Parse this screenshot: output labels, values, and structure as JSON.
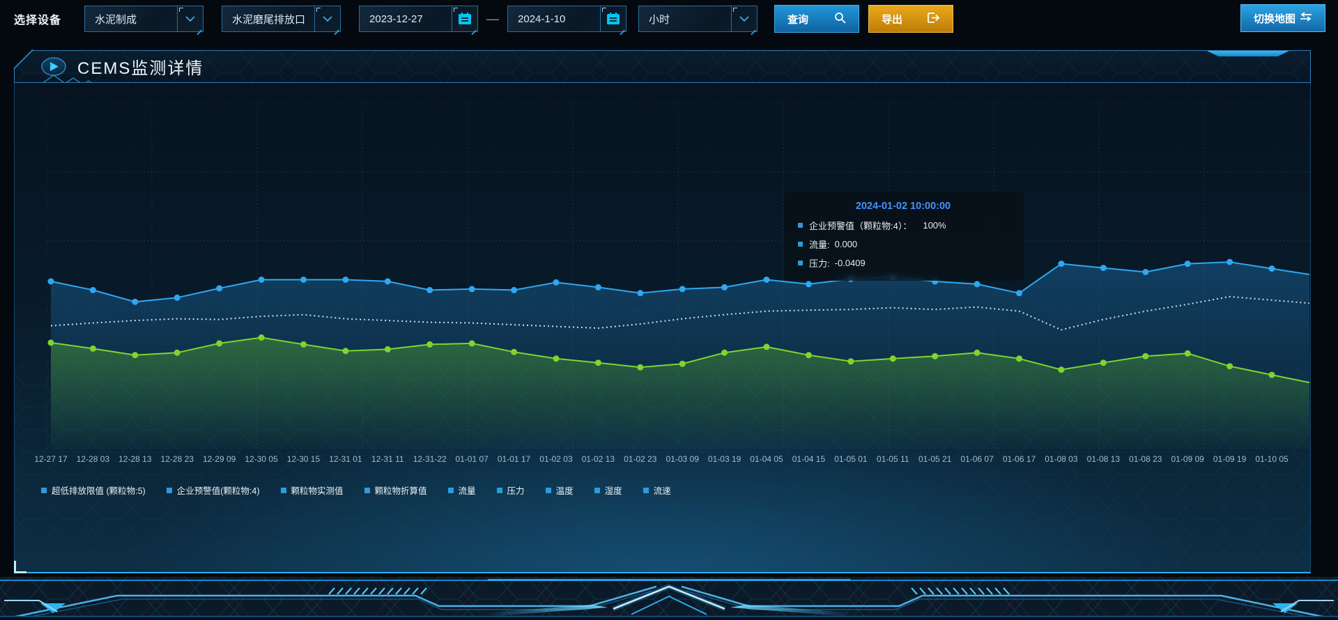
{
  "toolbar": {
    "device_label": "选择设备",
    "selects": [
      {
        "value": "水泥制成"
      },
      {
        "value": "水泥磨尾排放口"
      }
    ],
    "date_from": "2023-12-27",
    "date_separator": "—",
    "date_to": "2024-1-10",
    "interval": {
      "value": "小时"
    },
    "query_label": "查询",
    "export_label": "导出",
    "switch_map_label": "切换地图"
  },
  "header": {
    "title": "CEMS监测详情"
  },
  "tooltip": {
    "timestamp": "2024-01-02 10:00:00",
    "marker_color": "#2e9bd8",
    "rows": [
      {
        "label": "企业预警值（颗粒物:4）：",
        "value": "100%"
      },
      {
        "label": "流量:",
        "value": "0.000"
      },
      {
        "label": "压力:",
        "value": "-0.0409"
      }
    ]
  },
  "legend": {
    "marker_color": "#2e9bd8",
    "items": [
      "超低排放限值 (颗粒物:5)",
      "企业预警值(颗粒物:4)",
      "颗粒物实测值",
      "颗粒物折算值",
      "流量",
      "压力",
      "温度",
      "湿度",
      "流速"
    ]
  },
  "chart_data": {
    "type": "line",
    "title": "CEMS监测详情",
    "y_axis_visible": false,
    "y_unit": "pct_from_top",
    "grid": "dotted",
    "cursor_time": "2024-01-02 10:00:00",
    "x_categories": [
      "12-27 17",
      "12-28 03",
      "12-28 13",
      "12-28 23",
      "12-29 09",
      "12-30 05",
      "12-30 15",
      "12-31 01",
      "12-31 11",
      "12-31-22",
      "01-01 07",
      "01-01 17",
      "01-02 03",
      "01-02 13",
      "01-02 23",
      "01-03 09",
      "01-03 19",
      "01-04 05",
      "01-04 15",
      "01-05 01",
      "01-05 11",
      "01-05 21",
      "01-06 07",
      "01-06 17",
      "01-08 03",
      "01-08 13",
      "01-08 23",
      "01-09 09",
      "01-09 19",
      "01-10 05"
    ],
    "series": [
      {
        "name": "企业预警值（颗粒物:4）",
        "color": "#2fa7f2",
        "style": "solid",
        "markers": true,
        "area": true,
        "area_color": "#1f78b9",
        "value_at_cursor": "100%",
        "y_pct_from_top": [
          51.7,
          54.2,
          57.6,
          56.4,
          53.7,
          51.2,
          51.2,
          51.2,
          51.7,
          54.2,
          53.9,
          54.2,
          52.0,
          53.4,
          55.1,
          53.9,
          53.4,
          51.2,
          52.5,
          51.0,
          50.5,
          51.7,
          52.5,
          55.1,
          46.6,
          47.8,
          49.0,
          46.6,
          46.1,
          48.0
        ]
      },
      {
        "name": "流量",
        "color": "#e8f4fa",
        "style": "dotted",
        "markers": false,
        "area": false,
        "value_at_cursor": "0.000",
        "y_pct_from_top": [
          64.5,
          63.7,
          63.0,
          62.5,
          62.7,
          61.8,
          61.3,
          62.5,
          63.0,
          63.5,
          63.7,
          64.2,
          64.7,
          65.2,
          64.0,
          62.5,
          61.3,
          60.3,
          60.0,
          59.8,
          59.3,
          59.8,
          59.1,
          60.3,
          65.7,
          62.7,
          60.3,
          58.3,
          56.1,
          57.1
        ]
      },
      {
        "name": "压力",
        "color": "#7fd52f",
        "style": "solid",
        "markers": true,
        "area": true,
        "area_color": "#5cb82a",
        "value_at_cursor": "-0.0409",
        "y_pct_from_top": [
          69.4,
          71.1,
          73.0,
          72.3,
          69.6,
          67.9,
          69.9,
          71.8,
          71.3,
          69.9,
          69.6,
          72.1,
          74.0,
          75.2,
          76.5,
          75.5,
          72.3,
          70.6,
          73.0,
          74.8,
          74.0,
          73.3,
          72.3,
          74.0,
          77.2,
          75.2,
          73.3,
          72.5,
          76.2,
          78.7
        ]
      }
    ]
  },
  "colors": {
    "accent": "#2fa9e8",
    "query_button": "#1583c4",
    "export_button": "#d9940f",
    "panel_border": "#2b7ab8",
    "blue_line": "#2fa7f2",
    "white_line": "#e8f4fa",
    "green_line": "#7fd52f",
    "tooltip_timestamp": "#4493f8"
  }
}
